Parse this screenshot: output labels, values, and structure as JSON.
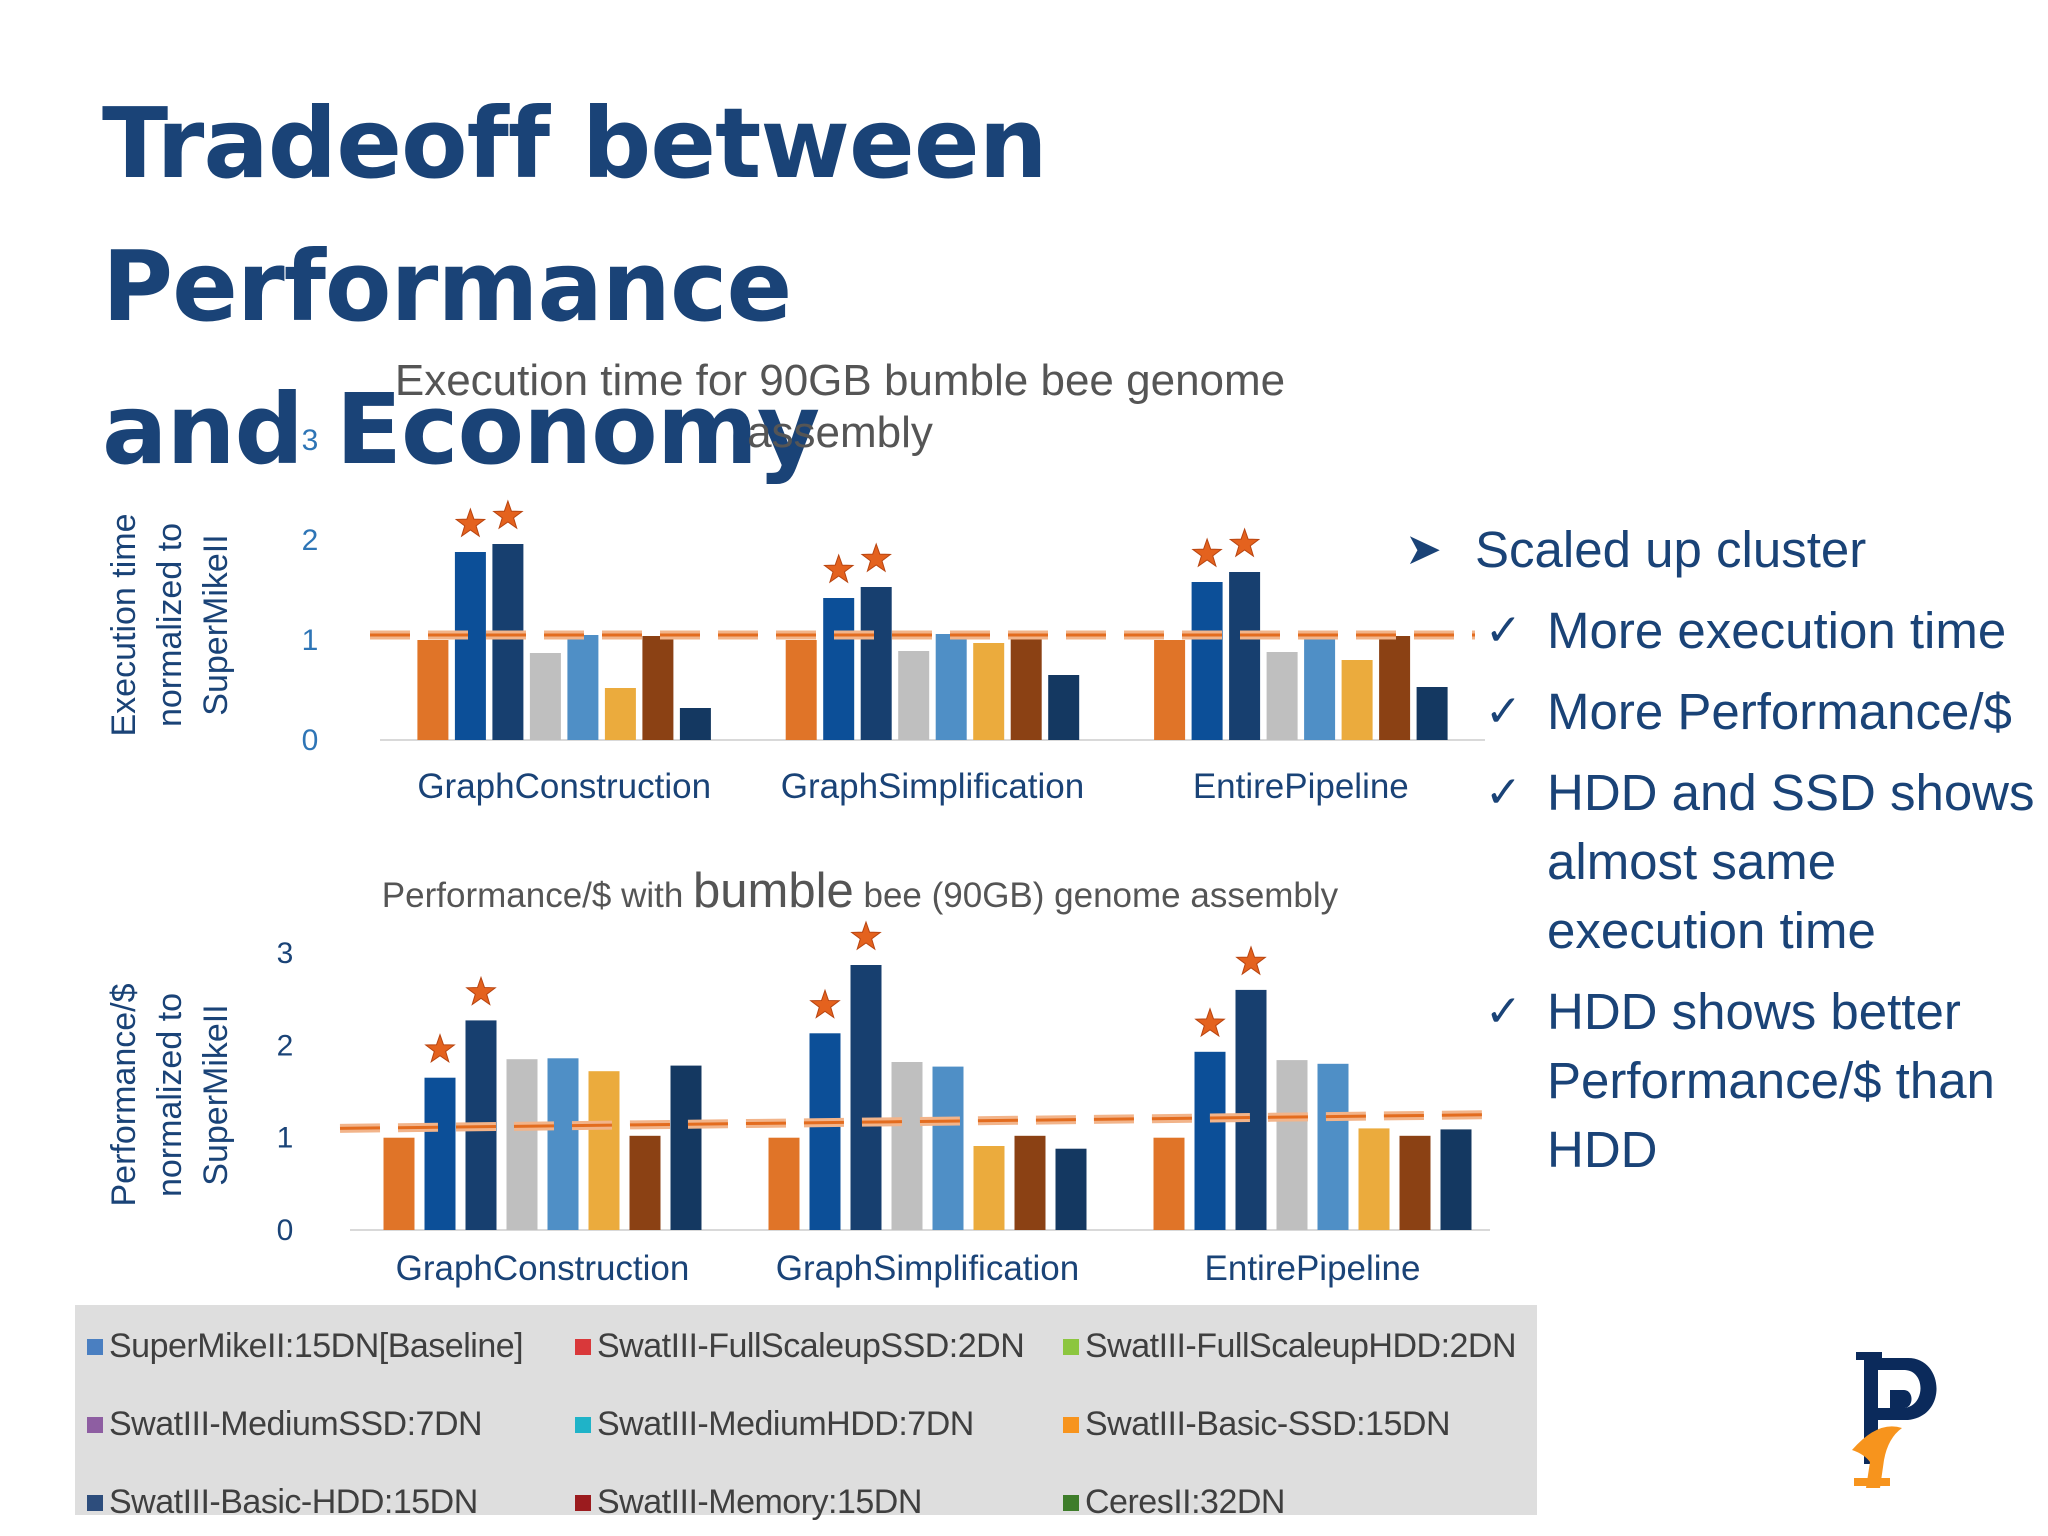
{
  "slide": {
    "title_line1": "Tradeoff between Performance",
    "title_line2": "and Economy"
  },
  "bullets": {
    "main": "Scaled up cluster",
    "main_icon": "arrow-bullet-icon",
    "items": [
      {
        "icon": "check-icon",
        "lines": [
          "More execution time"
        ]
      },
      {
        "icon": "check-icon",
        "lines": [
          "More Performance/$"
        ]
      },
      {
        "icon": "check-icon",
        "lines": [
          "HDD and SSD shows",
          "almost same",
          "execution time"
        ]
      },
      {
        "icon": "check-icon",
        "lines": [
          "HDD shows better",
          "Performance/$ than",
          "HDD"
        ]
      }
    ]
  },
  "legend": {
    "items": [
      {
        "label": "SuperMikeII:15DN[Baseline]",
        "color": "#4a7fc1"
      },
      {
        "label": "SwatIII-FullScaleupSSD:2DN",
        "color": "#d9383a"
      },
      {
        "label": "SwatIII-FullScaleupHDD:2DN",
        "color": "#8cc63f"
      },
      {
        "label": "SwatIII-MediumSSD:7DN",
        "color": "#8e5ea2"
      },
      {
        "label": "SwatIII-MediumHDD:7DN",
        "color": "#1fb3c8"
      },
      {
        "label": "SwatIII-Basic-SSD:15DN",
        "color": "#f7941d"
      },
      {
        "label": "SwatIII-Basic-HDD:15DN",
        "color": "#2d4d7c"
      },
      {
        "label": "SwatIII-Memory:15DN",
        "color": "#9b1b1e"
      },
      {
        "label": "CeresII:32DN",
        "color": "#3e7d2a"
      }
    ]
  },
  "chart_data": [
    {
      "type": "bar",
      "title": [
        "Execution time for 90GB bumble bee genome",
        "assembly"
      ],
      "ylabel": [
        "Execution time",
        "normalized to",
        "SuperMikeII"
      ],
      "xlabel": "",
      "ylim": [
        0,
        3
      ],
      "yticks": [
        "0",
        "1",
        "2",
        "3"
      ],
      "categories": [
        "GraphConstruction",
        "GraphSimplification",
        "EntirePipeline"
      ],
      "bar_colors": [
        "#e07428",
        "#0c4f98",
        "#173f6f",
        "#bfbfbf",
        "#4f8fc6",
        "#ebab3d",
        "#8b4114",
        "#143861"
      ],
      "series": [
        {
          "name": "bar1",
          "values": [
            1.0,
            1.0,
            1.0
          ]
        },
        {
          "name": "bar2",
          "values": [
            1.88,
            1.42,
            1.58
          ]
        },
        {
          "name": "bar3",
          "values": [
            1.96,
            1.53,
            1.68
          ]
        },
        {
          "name": "bar4",
          "values": [
            0.87,
            0.89,
            0.88
          ]
        },
        {
          "name": "bar5",
          "values": [
            1.05,
            1.06,
            1.05
          ]
        },
        {
          "name": "bar6",
          "values": [
            0.52,
            0.97,
            0.8
          ]
        },
        {
          "name": "bar7",
          "values": [
            1.04,
            1.03,
            1.04
          ]
        },
        {
          "name": "bar8",
          "values": [
            0.32,
            0.65,
            0.53
          ]
        }
      ],
      "starred": [
        [
          1,
          2
        ],
        [
          1,
          2
        ],
        [
          1,
          2
        ]
      ],
      "reference_line": 1.05
    },
    {
      "type": "bar",
      "title": [
        "Performance/$ with ",
        "bumble",
        " bee (90GB) genome assembly"
      ],
      "ylabel": [
        "Performance/$",
        "normalized to",
        "SuperMikeII"
      ],
      "xlabel": "",
      "ylim": [
        0,
        3
      ],
      "yticks": [
        "0",
        "1",
        "2",
        "3"
      ],
      "categories": [
        "GraphConstruction",
        "GraphSimplification",
        "EntirePipeline"
      ],
      "bar_colors": [
        "#e07428",
        "#0c4f98",
        "#173f6f",
        "#bfbfbf",
        "#4f8fc6",
        "#ebab3d",
        "#8b4114",
        "#143861"
      ],
      "series": [
        {
          "name": "bar1",
          "values": [
            1.0,
            1.0,
            1.0
          ]
        },
        {
          "name": "bar2",
          "values": [
            1.65,
            2.13,
            1.93
          ]
        },
        {
          "name": "bar3",
          "values": [
            2.27,
            2.87,
            2.6
          ]
        },
        {
          "name": "bar4",
          "values": [
            1.85,
            1.82,
            1.84
          ]
        },
        {
          "name": "bar5",
          "values": [
            1.86,
            1.77,
            1.8
          ]
        },
        {
          "name": "bar6",
          "values": [
            1.72,
            0.91,
            1.1
          ]
        },
        {
          "name": "bar7",
          "values": [
            1.02,
            1.02,
            1.02
          ]
        },
        {
          "name": "bar8",
          "values": [
            1.78,
            0.88,
            1.09
          ]
        }
      ],
      "starred": [
        [
          1,
          2
        ],
        [
          1,
          2
        ],
        [
          1,
          2
        ]
      ],
      "reference_line_start": 1.1,
      "reference_line_end": 1.25
    }
  ]
}
